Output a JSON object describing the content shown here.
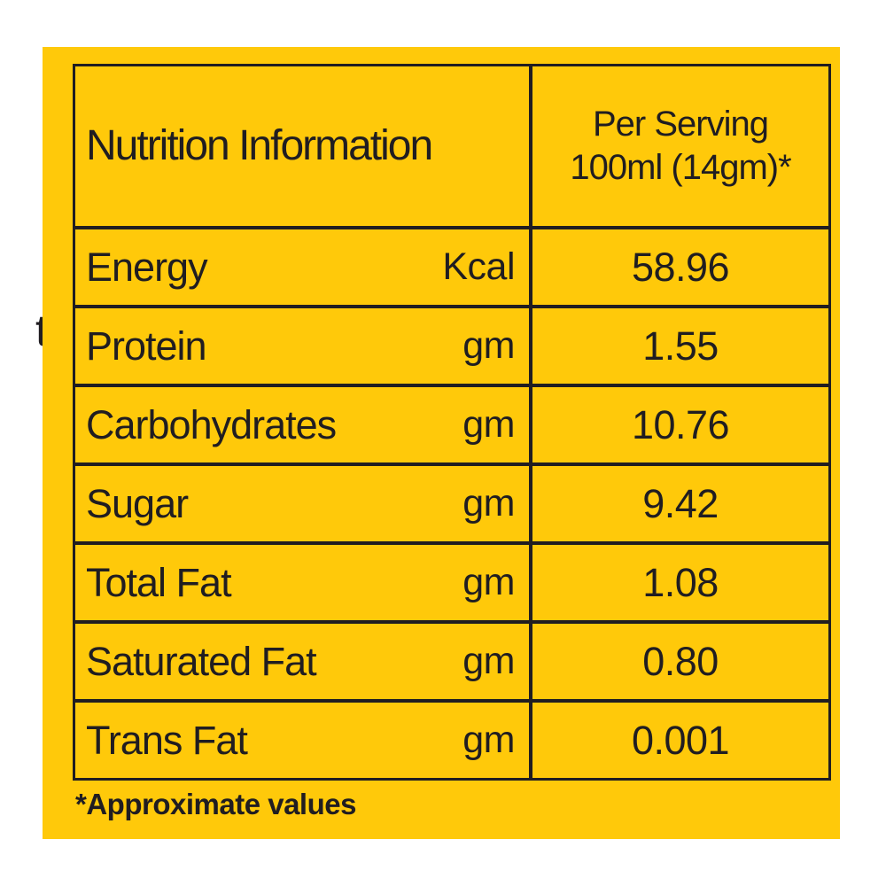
{
  "colors": {
    "page_background": "#FFFFFF",
    "label_background": "#FFC90A",
    "ink": "#201D21"
  },
  "table": {
    "header": {
      "title": "Nutrition Information",
      "column2_line1": "Per Serving",
      "column2_line2": "100ml (14gm)*"
    },
    "rows": [
      {
        "name": "Energy",
        "unit": "Kcal",
        "value": "58.96"
      },
      {
        "name": "Protein",
        "unit": "gm",
        "value": "1.55"
      },
      {
        "name": "Carbohydrates",
        "unit": "gm",
        "value": "10.76"
      },
      {
        "name": "Sugar",
        "unit": "gm",
        "value": "9.42"
      },
      {
        "name": "Total Fat",
        "unit": "gm",
        "value": "1.08"
      },
      {
        "name": "Saturated Fat",
        "unit": "gm",
        "value": "0.80"
      },
      {
        "name": "Trans Fat",
        "unit": "gm",
        "value": "0.001"
      }
    ],
    "footnote": "*Approximate values"
  },
  "stray": {
    "text": "t"
  }
}
